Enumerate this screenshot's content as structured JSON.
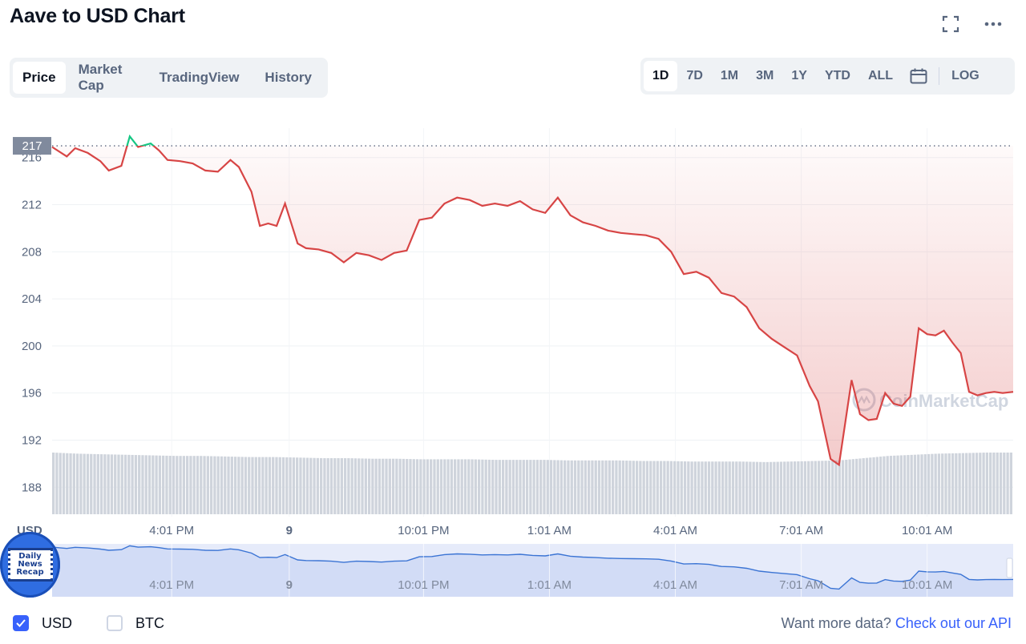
{
  "header": {
    "title": "Aave to USD Chart"
  },
  "icons": {
    "fullscreen": "fullscreen-icon",
    "more": "more-icon",
    "calendar": "calendar-icon"
  },
  "tabs": [
    {
      "label": "Price",
      "active": true
    },
    {
      "label": "Market Cap",
      "active": false
    },
    {
      "label": "TradingView",
      "active": false
    },
    {
      "label": "History",
      "active": false
    }
  ],
  "ranges": [
    {
      "label": "1D",
      "active": true
    },
    {
      "label": "7D",
      "active": false
    },
    {
      "label": "1M",
      "active": false
    },
    {
      "label": "3M",
      "active": false
    },
    {
      "label": "1Y",
      "active": false
    },
    {
      "label": "YTD",
      "active": false
    },
    {
      "label": "ALL",
      "active": false
    }
  ],
  "scale_toggle": "LOG",
  "colors": {
    "up": "#16c784",
    "down": "#d74545",
    "accent": "#3861fb",
    "navigator": "#3b74d4"
  },
  "chart_data": {
    "type": "line",
    "ylabel": "USD",
    "y_ticks": [
      188,
      192,
      196,
      200,
      204,
      208,
      212,
      216
    ],
    "ylim": [
      185.5,
      218.5
    ],
    "open_price": 217,
    "open_price_label": "217",
    "x_ticks": [
      "4:01 PM",
      "9",
      "10:01 PM",
      "1:01 AM",
      "4:01 AM",
      "7:01 AM",
      "10:01 AM"
    ],
    "x_tick_positions": [
      6.4,
      9.2,
      12.4,
      15.4,
      18.4,
      21.4,
      24.4
    ],
    "xlim": [
      3.55,
      26.45
    ],
    "x_unit": "hours",
    "grid": true,
    "series": [
      {
        "x": [
          3.55,
          3.9,
          4.1,
          4.4,
          4.7,
          4.9,
          5.2,
          5.4,
          5.6,
          5.9,
          6.1,
          6.3,
          6.6,
          6.9,
          7.2,
          7.5,
          7.8,
          8.0,
          8.3,
          8.5,
          8.7,
          8.9,
          9.1,
          9.4,
          9.6,
          9.9,
          10.2,
          10.5,
          10.8,
          11.1,
          11.4,
          11.7,
          12.0,
          12.3,
          12.6,
          12.9,
          13.2,
          13.5,
          13.8,
          14.1,
          14.4,
          14.7,
          15.0,
          15.3,
          15.6,
          15.9,
          16.2,
          16.5,
          16.8,
          17.1,
          17.4,
          17.7,
          18.0,
          18.3,
          18.6,
          18.9,
          19.2,
          19.5,
          19.8,
          20.1,
          20.4,
          20.7,
          21.0,
          21.3,
          21.6,
          21.8,
          22.1,
          22.3,
          22.6,
          22.8,
          23.0,
          23.2,
          23.4,
          23.6,
          23.8,
          24.0,
          24.2,
          24.4,
          24.6,
          24.8,
          25.0,
          25.2,
          25.4,
          25.6,
          25.8,
          26.0,
          26.2,
          26.45
        ],
        "y": [
          216.9,
          216.1,
          216.8,
          216.4,
          215.7,
          214.9,
          215.3,
          217.8,
          216.9,
          217.2,
          216.6,
          215.8,
          215.7,
          215.5,
          214.9,
          214.8,
          215.8,
          215.2,
          213.1,
          210.2,
          210.4,
          210.2,
          212.1,
          208.7,
          208.3,
          208.2,
          207.9,
          207.1,
          207.9,
          207.7,
          207.3,
          207.9,
          208.1,
          210.7,
          210.9,
          212.1,
          212.6,
          212.4,
          211.9,
          212.1,
          211.9,
          212.3,
          211.6,
          211.3,
          212.6,
          211.1,
          210.5,
          210.2,
          209.8,
          209.6,
          209.5,
          209.4,
          209.1,
          208.0,
          206.1,
          206.3,
          205.8,
          204.5,
          204.2,
          203.3,
          201.5,
          200.6,
          199.9,
          199.2,
          196.6,
          195.3,
          190.4,
          189.9,
          197.1,
          194.2,
          193.7,
          193.8,
          196.0,
          195.1,
          194.9,
          195.7,
          201.5,
          201.0,
          200.9,
          201.3,
          200.3,
          199.4,
          196.1,
          195.8,
          196.0,
          196.1,
          196.0,
          196.1
        ]
      }
    ],
    "volume": [
      0.55,
      0.54,
      0.535,
      0.53,
      0.525,
      0.52,
      0.52,
      0.515,
      0.51,
      0.51,
      0.505,
      0.5,
      0.5,
      0.495,
      0.495,
      0.49,
      0.49,
      0.49,
      0.485,
      0.485,
      0.485,
      0.48,
      0.48,
      0.48,
      0.475,
      0.475,
      0.47,
      0.47,
      0.47,
      0.465,
      0.47,
      0.475,
      0.48,
      0.5,
      0.52,
      0.53,
      0.54,
      0.545,
      0.55,
      0.55
    ],
    "navigator_x_ticks": [
      "4:01 PM",
      "9",
      "10:01 PM",
      "1:01 AM",
      "4:01 AM",
      "7:01 AM",
      "10:01 AM"
    ],
    "watermark": "CoinMarketCap"
  },
  "badge": {
    "line1": "Daily",
    "line2": "News",
    "line3": "Recap"
  },
  "footer": {
    "usd": {
      "label": "USD",
      "checked": true
    },
    "btc": {
      "label": "BTC",
      "checked": false
    },
    "api_prefix": "Want more data?",
    "api_link": "Check out our API"
  }
}
